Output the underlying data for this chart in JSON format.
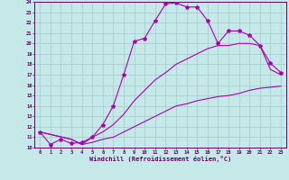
{
  "xlabel": "Windchill (Refroidissement éolien,°C)",
  "bg_color": "#c5e8e8",
  "grid_color": "#a8d0d0",
  "line_color": "#aa00aa",
  "xlim": [
    -0.5,
    23.5
  ],
  "ylim": [
    10,
    24
  ],
  "xticks": [
    0,
    1,
    2,
    3,
    4,
    5,
    6,
    7,
    8,
    9,
    10,
    11,
    12,
    13,
    14,
    15,
    16,
    17,
    18,
    19,
    20,
    21,
    22,
    23
  ],
  "yticks": [
    10,
    11,
    12,
    13,
    14,
    15,
    16,
    17,
    18,
    19,
    20,
    21,
    22,
    23,
    24
  ],
  "line1_x": [
    0,
    1,
    2,
    3,
    4,
    5,
    6,
    7,
    8,
    9,
    10,
    11,
    12,
    13,
    14,
    15,
    16,
    17,
    18,
    19,
    20,
    21,
    22,
    23
  ],
  "line1_y": [
    11.5,
    10.3,
    10.8,
    10.4,
    10.5,
    11.0,
    12.2,
    14.0,
    17.0,
    20.2,
    20.5,
    22.2,
    23.8,
    23.9,
    23.5,
    23.5,
    22.2,
    20.0,
    21.2,
    21.2,
    20.8,
    19.8,
    18.1,
    17.2
  ],
  "line2_x": [
    0,
    3,
    4,
    5,
    6,
    7,
    8,
    9,
    10,
    11,
    12,
    13,
    14,
    15,
    16,
    17,
    18,
    19,
    20,
    21,
    22,
    23
  ],
  "line2_y": [
    11.5,
    10.8,
    10.3,
    10.5,
    10.8,
    11.0,
    11.5,
    12.0,
    12.5,
    13.0,
    13.5,
    14.0,
    14.2,
    14.5,
    14.7,
    14.9,
    15.0,
    15.2,
    15.5,
    15.7,
    15.8,
    15.9
  ],
  "line3_x": [
    0,
    3,
    4,
    5,
    6,
    7,
    8,
    9,
    10,
    11,
    12,
    13,
    14,
    15,
    16,
    17,
    18,
    19,
    20,
    21,
    22,
    23
  ],
  "line3_y": [
    11.5,
    10.8,
    10.3,
    11.0,
    11.5,
    12.2,
    13.2,
    14.5,
    15.5,
    16.5,
    17.2,
    18.0,
    18.5,
    19.0,
    19.5,
    19.8,
    19.8,
    20.0,
    20.0,
    19.8,
    17.5,
    17.0
  ]
}
